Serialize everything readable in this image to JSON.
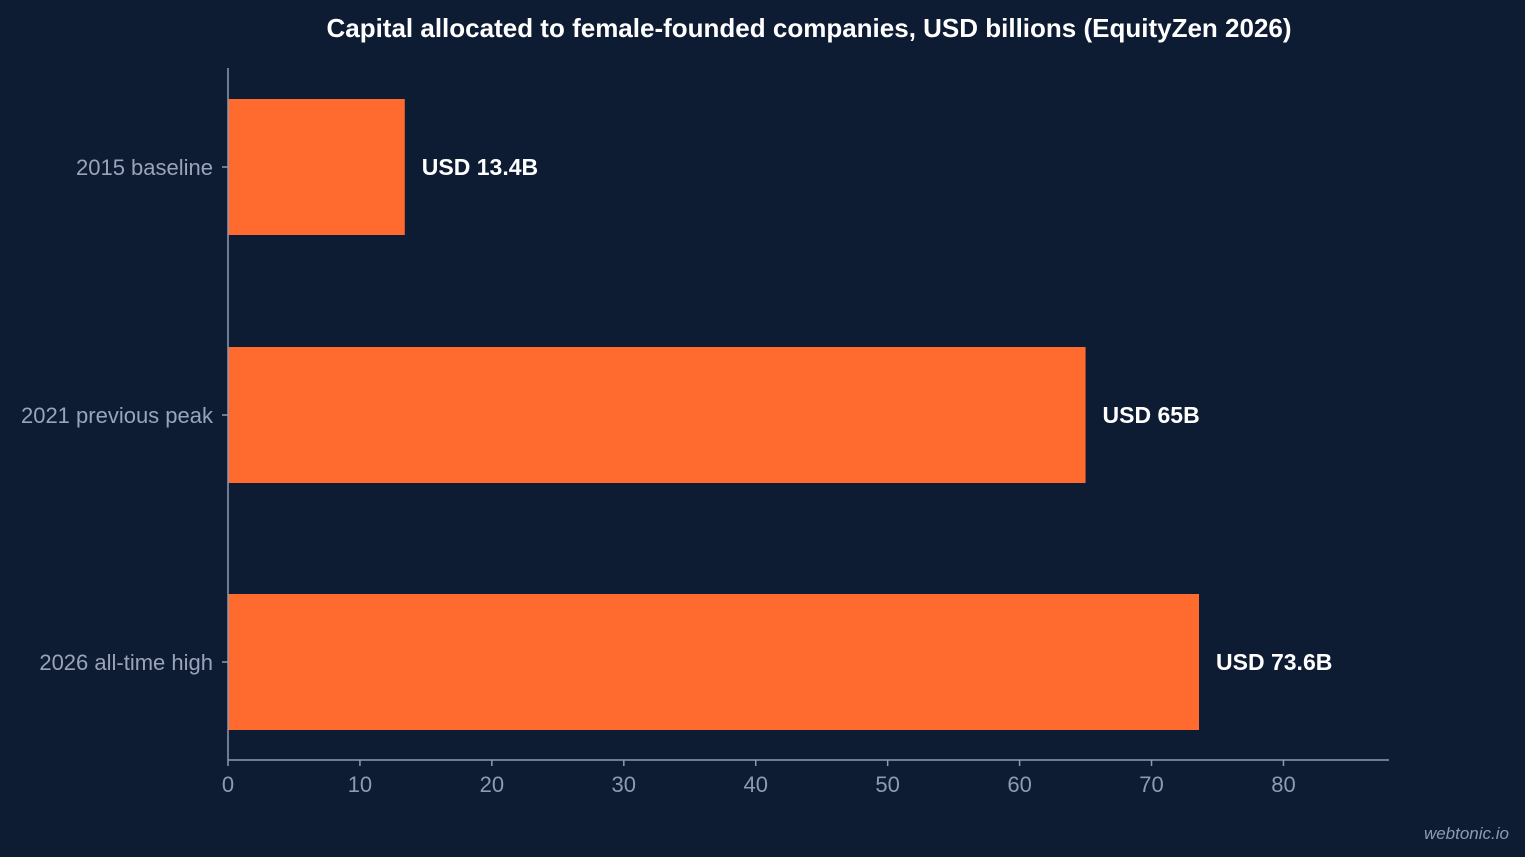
{
  "colors": {
    "background": "#0d1b33",
    "bar": "#ff6a2e",
    "axis": "#8f9ab0",
    "tick_label": "#8f9ab0",
    "category_label": "#9aa4b8",
    "data_label": "#ffffff",
    "title": "#ffffff",
    "watermark": "#8f9ab0"
  },
  "watermark": "webtonic.io",
  "chart_data": {
    "type": "bar",
    "orientation": "horizontal",
    "title": "Capital allocated to female-founded companies, USD billions (EquityZen 2026)",
    "xlabel": "",
    "ylabel": "",
    "categories": [
      "2015 baseline",
      "2021 previous peak",
      "2026 all-time high"
    ],
    "values": [
      13.4,
      65,
      73.6
    ],
    "data_labels": [
      "USD 13.4B",
      "USD 65B",
      "USD 73.6B"
    ],
    "xlim": [
      0,
      88
    ],
    "x_ticks": [
      0,
      10,
      20,
      30,
      40,
      50,
      60,
      70,
      80
    ],
    "grid": false,
    "legend": "none"
  }
}
